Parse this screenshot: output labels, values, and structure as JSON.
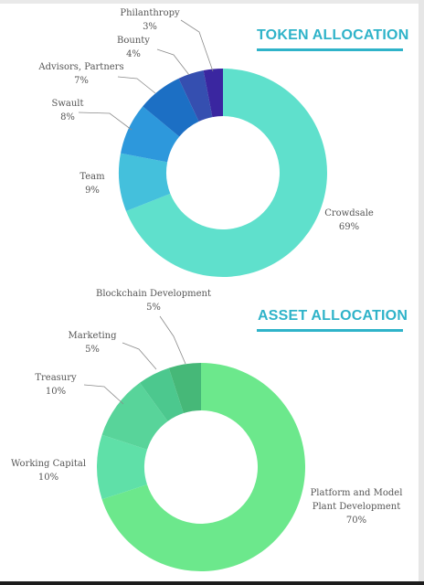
{
  "chart_data": [
    {
      "type": "pie",
      "title": "TOKEN ALLOCATION",
      "categories": [
        "Crowdsale",
        "Team",
        "Swault",
        "Advisors, Partners",
        "Bounty",
        "Philanthropy"
      ],
      "values": [
        69,
        9,
        8,
        7,
        4,
        3
      ],
      "value_labels": [
        "69%",
        "9%",
        "8%",
        "7%",
        "4%",
        "3%"
      ],
      "colors": [
        "#5fe0cc",
        "#44c0dc",
        "#2d98dc",
        "#1c6fc4",
        "#354fb0",
        "#3a26a0"
      ],
      "legend": "none"
    },
    {
      "type": "pie",
      "title": "ASSET ALLOCATION",
      "categories": [
        "Platform and Model Plant Development",
        "Working Capital",
        "Treasury",
        "Marketing",
        "Blockchain Development"
      ],
      "label_lines": [
        [
          "Platform and Model",
          "Plant Development"
        ],
        [
          "Working Capital"
        ],
        [
          "Treasury"
        ],
        [
          "Marketing"
        ],
        [
          "Blockchain Development"
        ]
      ],
      "values": [
        70,
        10,
        10,
        5,
        5
      ],
      "value_labels": [
        "70%",
        "10%",
        "10%",
        "5%",
        "5%"
      ],
      "colors": [
        "#6ce88c",
        "#5fe0a8",
        "#58d49a",
        "#4cc88e",
        "#46b878"
      ],
      "legend": "none"
    }
  ]
}
